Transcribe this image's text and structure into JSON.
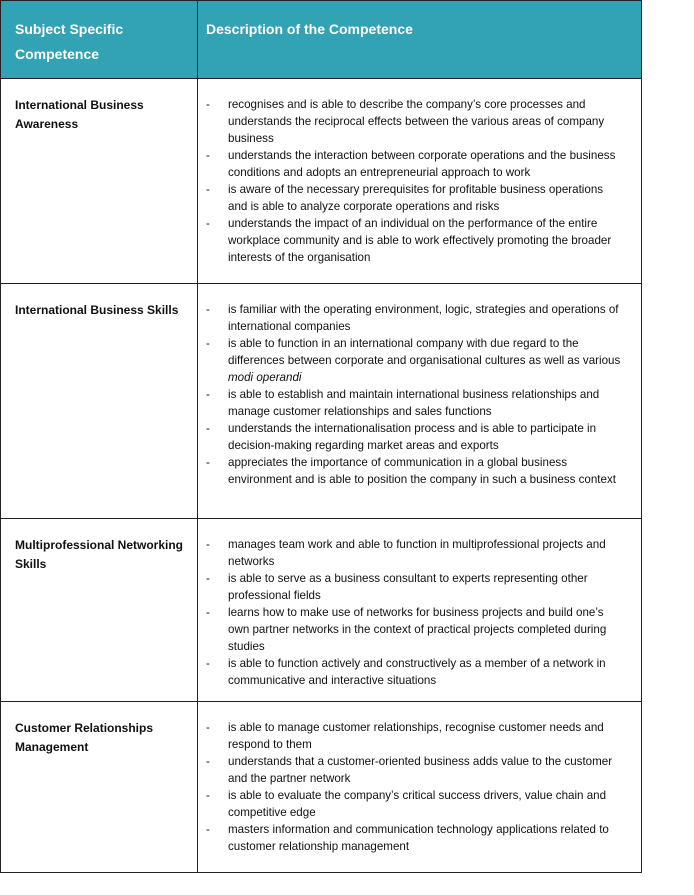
{
  "header": {
    "col1": "Subject Specific Competence",
    "col2": "Description of the Competence"
  },
  "rows": [
    {
      "name": "International Business Awareness",
      "items": [
        [
          {
            "t": "recognises and is able to describe the company’s core processes and understands the reciprocal effects between the various areas of company business"
          }
        ],
        [
          {
            "t": "understands the interaction between corporate operations and the business conditions and adopts an entrepreneurial approach to work"
          }
        ],
        [
          {
            "t": "is aware of the necessary prerequisites for profitable business operations and is able to analyze corporate operations and risks"
          }
        ],
        [
          {
            "t": "understands the impact of an individual on the performance of the entire workplace community and is able to work effectively promoting the broader interests of the organisation"
          }
        ]
      ]
    },
    {
      "name": "International Business Skills",
      "items": [
        [
          {
            "t": "is familiar with the operating environment, logic, strategies and operations of international companies"
          }
        ],
        [
          {
            "t": "is able to function in an international company with due regard to the differences between corporate and organisational cultures as well as various "
          },
          {
            "t": "modi operandi",
            "i": true
          }
        ],
        [
          {
            "t": "is able to establish and maintain international business relationships and manage customer relationships and sales functions"
          }
        ],
        [
          {
            "t": "understands the internationalisation process and is able to participate in decision-making regarding market areas and exports"
          }
        ],
        [
          {
            "t": "appreciates the importance of communication in a global business environment and is able to position the company in such a business context"
          }
        ]
      ]
    },
    {
      "name": "Multiprofessional Networking Skills",
      "items": [
        [
          {
            "t": "manages team work and able to function in multiprofessional projects and networks"
          }
        ],
        [
          {
            "t": "is able to serve as a business consultant to experts representing other professional fields"
          }
        ],
        [
          {
            "t": "learns how to make use of networks for business projects and build one’s own partner networks in the context of practical projects completed during studies"
          }
        ],
        [
          {
            "t": "is able to function actively and constructively as a member of a network in communicative and interactive situations"
          }
        ]
      ]
    },
    {
      "name": "Customer Relationships Management",
      "items": [
        [
          {
            "t": "is able to manage customer relationships, recognise customer needs and respond to them"
          }
        ],
        [
          {
            "t": "understands that a customer-oriented business adds value to the customer and the partner network"
          }
        ],
        [
          {
            "t": "is able to evaluate the company’s critical success drivers, value chain and competitive edge"
          }
        ],
        [
          {
            "t": "masters information and communication technology applications related to customer relationship management"
          }
        ]
      ]
    }
  ],
  "bullet": "-",
  "colors": {
    "header_bg": "#31a3b5",
    "header_text": "#ffffff"
  }
}
